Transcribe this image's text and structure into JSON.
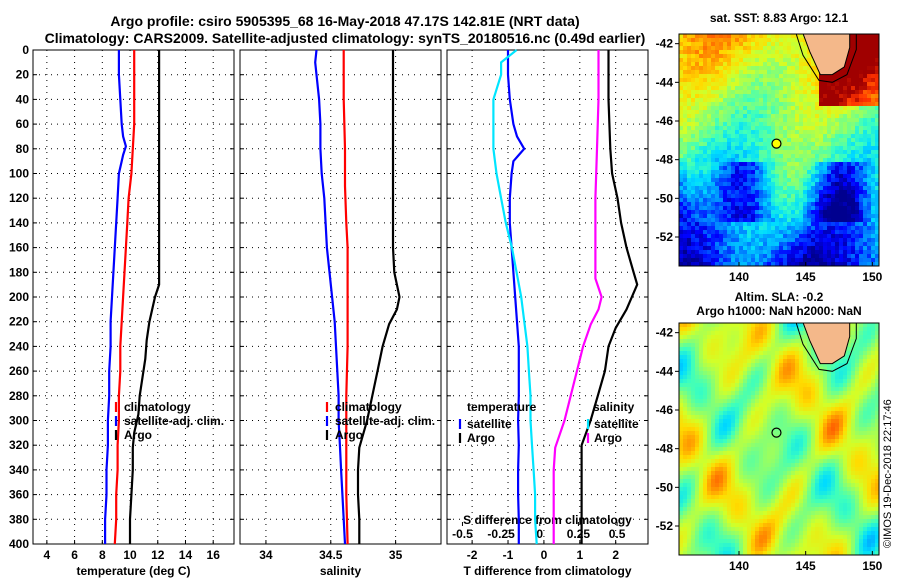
{
  "title_line1": "Argo profile: csiro 5905395_68 16-May-2018 47.17S 142.81E (NRT data)",
  "title_line2": "Climatology: CARS2009. Satellite-adjusted climatology: synTS_20180516.nc (0.49d earlier)",
  "credit": "©IMOS 19-Dec-2018 22:17:46",
  "colors": {
    "climatology": "#ff0000",
    "satellite": "#0000ff",
    "argo": "#000000",
    "t_diff": "#00e5ff",
    "s_diff": "#ff00ff",
    "grid": "#000000"
  },
  "depth_axis": {
    "ylim": [
      0,
      400
    ],
    "ticks": [
      "0",
      "20",
      "40",
      "60",
      "80",
      "100",
      "120",
      "140",
      "160",
      "180",
      "200",
      "220",
      "240",
      "260",
      "280",
      "300",
      "320",
      "340",
      "360",
      "380",
      "400"
    ]
  },
  "chart_data": [
    {
      "type": "line",
      "id": "temperature",
      "xlabel": "temperature (deg C)",
      "xlim": [
        3,
        17.5
      ],
      "xticks": [
        4,
        6,
        8,
        10,
        12,
        14,
        16
      ],
      "xtick_labels": [
        "4",
        "6",
        "8",
        "10",
        "12",
        "14",
        "16"
      ],
      "legend": [
        "climatology",
        "satellite-adj. clim.",
        "Argo"
      ],
      "series": [
        {
          "name": "climatology",
          "color": "#ff0000",
          "points": [
            [
              10.3,
              0
            ],
            [
              10.3,
              30
            ],
            [
              10.3,
              60
            ],
            [
              10.2,
              80
            ],
            [
              10.1,
              100
            ],
            [
              9.9,
              120
            ],
            [
              9.8,
              140
            ],
            [
              9.7,
              160
            ],
            [
              9.6,
              180
            ],
            [
              9.5,
              200
            ],
            [
              9.4,
              220
            ],
            [
              9.3,
              240
            ],
            [
              9.3,
              260
            ],
            [
              9.2,
              280
            ],
            [
              9.2,
              300
            ],
            [
              9.1,
              320
            ],
            [
              9.1,
              340
            ],
            [
              9.0,
              360
            ],
            [
              9.0,
              380
            ],
            [
              8.9,
              400
            ]
          ]
        },
        {
          "name": "satellite",
          "color": "#0000ff",
          "points": [
            [
              9.2,
              0
            ],
            [
              9.2,
              20
            ],
            [
              9.3,
              40
            ],
            [
              9.4,
              60
            ],
            [
              9.5,
              70
            ],
            [
              9.7,
              78
            ],
            [
              9.5,
              85
            ],
            [
              9.4,
              90
            ],
            [
              9.2,
              100
            ],
            [
              9.1,
              120
            ],
            [
              9.0,
              140
            ],
            [
              8.9,
              160
            ],
            [
              8.8,
              180
            ],
            [
              8.7,
              200
            ],
            [
              8.6,
              220
            ],
            [
              8.6,
              240
            ],
            [
              8.5,
              260
            ],
            [
              8.5,
              280
            ],
            [
              8.4,
              300
            ],
            [
              8.4,
              320
            ],
            [
              8.3,
              340
            ],
            [
              8.3,
              360
            ],
            [
              8.2,
              380
            ],
            [
              8.2,
              400
            ]
          ]
        },
        {
          "name": "Argo",
          "color": "#000000",
          "points": [
            [
              12.1,
              0
            ],
            [
              12.1,
              40
            ],
            [
              12.1,
              80
            ],
            [
              12.1,
              120
            ],
            [
              12.1,
              160
            ],
            [
              12.1,
              190
            ],
            [
              11.8,
              200
            ],
            [
              11.6,
              210
            ],
            [
              11.4,
              220
            ],
            [
              11.2,
              235
            ],
            [
              11.1,
              250
            ],
            [
              10.9,
              265
            ],
            [
              10.7,
              280
            ],
            [
              10.6,
              295
            ],
            [
              10.3,
              310
            ],
            [
              10.2,
              322
            ],
            [
              10.2,
              340
            ],
            [
              10.1,
              360
            ],
            [
              10.0,
              380
            ],
            [
              10.0,
              400
            ]
          ]
        }
      ]
    },
    {
      "type": "line",
      "id": "salinity",
      "xlabel": "salinity",
      "xlim": [
        33.8,
        35.35
      ],
      "xticks": [
        34,
        34.5,
        35
      ],
      "xtick_labels": [
        "34",
        "34.5",
        "35"
      ],
      "legend": [
        "climatology",
        "satellite-adj. clim.",
        "Argo"
      ],
      "series": [
        {
          "name": "climatology",
          "color": "#ff0000",
          "points": [
            [
              34.6,
              0
            ],
            [
              34.6,
              40
            ],
            [
              34.61,
              80
            ],
            [
              34.61,
              110
            ],
            [
              34.62,
              140
            ],
            [
              34.63,
              160
            ],
            [
              34.63,
              200
            ],
            [
              34.63,
              240
            ],
            [
              34.62,
              280
            ],
            [
              34.62,
              320
            ],
            [
              34.62,
              360
            ],
            [
              34.63,
              400
            ]
          ]
        },
        {
          "name": "satellite",
          "color": "#0000ff",
          "points": [
            [
              34.39,
              0
            ],
            [
              34.38,
              10
            ],
            [
              34.39,
              20
            ],
            [
              34.41,
              40
            ],
            [
              34.42,
              60
            ],
            [
              34.42,
              80
            ],
            [
              34.43,
              100
            ],
            [
              34.45,
              120
            ],
            [
              34.46,
              140
            ],
            [
              34.47,
              160
            ],
            [
              34.49,
              180
            ],
            [
              34.51,
              200
            ],
            [
              34.53,
              220
            ],
            [
              34.54,
              240
            ],
            [
              34.55,
              260
            ],
            [
              34.56,
              280
            ],
            [
              34.56,
              300
            ],
            [
              34.57,
              320
            ],
            [
              34.58,
              340
            ],
            [
              34.59,
              360
            ],
            [
              34.6,
              380
            ],
            [
              34.61,
              400
            ]
          ]
        },
        {
          "name": "Argo",
          "color": "#000000",
          "points": [
            [
              34.98,
              0
            ],
            [
              34.98,
              40
            ],
            [
              34.98,
              80
            ],
            [
              34.98,
              120
            ],
            [
              34.98,
              160
            ],
            [
              34.99,
              180
            ],
            [
              35.03,
              200
            ],
            [
              35.01,
              210
            ],
            [
              34.95,
              222
            ],
            [
              34.9,
              240
            ],
            [
              34.86,
              260
            ],
            [
              34.82,
              280
            ],
            [
              34.78,
              300
            ],
            [
              34.72,
              322
            ],
            [
              34.71,
              340
            ],
            [
              34.71,
              360
            ],
            [
              34.72,
              380
            ],
            [
              34.72,
              400
            ]
          ]
        }
      ]
    },
    {
      "type": "line",
      "id": "difference",
      "xlabel": "T difference from climatology",
      "xlim": [
        -2.7,
        2.9
      ],
      "xticks": [
        -2,
        -1,
        0,
        1,
        2
      ],
      "xtick_labels": [
        "-2",
        "-1",
        "0",
        "1",
        "2"
      ],
      "x2label": "S difference from climatology",
      "x2ticks": [
        -0.5,
        -0.25,
        0,
        0.25,
        0.5
      ],
      "x2tick_labels": [
        "-0.5",
        "-0.25",
        "0",
        "0.25",
        "0.5"
      ],
      "legend_left_title": "temperature",
      "legend_right_title": "salinity",
      "legend_left": [
        "satellite",
        "Argo"
      ],
      "legend_right": [
        "satellite",
        "Argo"
      ],
      "series": [
        {
          "name": "T satellite",
          "color": "#0000ff",
          "points": [
            [
              -1.0,
              0
            ],
            [
              -1.0,
              20
            ],
            [
              -0.95,
              40
            ],
            [
              -0.85,
              60
            ],
            [
              -0.75,
              70
            ],
            [
              -0.55,
              80
            ],
            [
              -0.7,
              85
            ],
            [
              -0.85,
              90
            ],
            [
              -0.9,
              100
            ],
            [
              -0.95,
              120
            ],
            [
              -0.95,
              140
            ],
            [
              -0.9,
              160
            ],
            [
              -0.85,
              180
            ],
            [
              -0.8,
              200
            ],
            [
              -0.75,
              220
            ],
            [
              -0.7,
              240
            ],
            [
              -0.7,
              260
            ],
            [
              -0.7,
              280
            ],
            [
              -0.72,
              300
            ],
            [
              -0.7,
              320
            ],
            [
              -0.72,
              340
            ],
            [
              -0.72,
              360
            ],
            [
              -0.7,
              380
            ],
            [
              -0.7,
              400
            ]
          ]
        },
        {
          "name": "T Argo",
          "color": "#000000",
          "points": [
            [
              1.8,
              0
            ],
            [
              1.8,
              40
            ],
            [
              1.85,
              80
            ],
            [
              1.9,
              100
            ],
            [
              2.05,
              120
            ],
            [
              2.15,
              140
            ],
            [
              2.3,
              160
            ],
            [
              2.5,
              180
            ],
            [
              2.6,
              190
            ],
            [
              2.3,
              210
            ],
            [
              2.0,
              225
            ],
            [
              1.8,
              240
            ],
            [
              1.7,
              260
            ],
            [
              1.5,
              280
            ],
            [
              1.3,
              300
            ],
            [
              1.05,
              320
            ],
            [
              1.05,
              340
            ],
            [
              1.05,
              360
            ],
            [
              1.05,
              380
            ],
            [
              1.05,
              400
            ]
          ]
        },
        {
          "name": "S satellite",
          "color": "#00e5ff",
          "points": [
            [
              -0.15,
              0
            ],
            [
              -0.25,
              10
            ],
            [
              -0.25,
              20
            ],
            [
              -0.3,
              40
            ],
            [
              -0.3,
              80
            ],
            [
              -0.28,
              100
            ],
            [
              -0.25,
              120
            ],
            [
              -0.22,
              140
            ],
            [
              -0.18,
              160
            ],
            [
              -0.15,
              180
            ],
            [
              -0.12,
              200
            ],
            [
              -0.1,
              220
            ],
            [
              -0.08,
              240
            ],
            [
              -0.07,
              260
            ],
            [
              -0.06,
              280
            ],
            [
              -0.06,
              300
            ],
            [
              -0.05,
              320
            ],
            [
              -0.04,
              340
            ],
            [
              -0.03,
              360
            ],
            [
              -0.03,
              380
            ],
            [
              -0.02,
              400
            ]
          ]
        },
        {
          "name": "S Argo",
          "color": "#ff00ff",
          "points": [
            [
              0.38,
              0
            ],
            [
              0.38,
              40
            ],
            [
              0.37,
              80
            ],
            [
              0.36,
              120
            ],
            [
              0.36,
              160
            ],
            [
              0.36,
              185
            ],
            [
              0.4,
              200
            ],
            [
              0.38,
              210
            ],
            [
              0.33,
              222
            ],
            [
              0.28,
              240
            ],
            [
              0.24,
              260
            ],
            [
              0.2,
              280
            ],
            [
              0.16,
              300
            ],
            [
              0.1,
              322
            ],
            [
              0.09,
              340
            ],
            [
              0.09,
              360
            ],
            [
              0.09,
              380
            ],
            [
              0.09,
              400
            ]
          ]
        }
      ]
    }
  ],
  "maps": [
    {
      "id": "sst",
      "title": "sat. SST: 8.83 Argo: 12.1",
      "title_line2": "",
      "lon_ticks": [
        "140",
        "145",
        "150"
      ],
      "lat_ticks": [
        "-42",
        "-44",
        "-46",
        "-48",
        "-50",
        "-52"
      ],
      "lon_range": [
        135.5,
        150.5
      ],
      "lat_range": [
        -53.5,
        -41.5
      ]
    },
    {
      "id": "sla",
      "title": "Altim. SLA: -0.2",
      "title_line2": "Argo h1000: NaN h2000: NaN",
      "lon_ticks": [
        "140",
        "145",
        "150"
      ],
      "lat_ticks": [
        "-42",
        "-44",
        "-46",
        "-48",
        "-50",
        "-52"
      ],
      "lon_range": [
        135.5,
        150.5
      ],
      "lat_range": [
        -53.5,
        -41.5
      ]
    }
  ],
  "argo_position": {
    "lon": 142.81,
    "lat": -47.17
  }
}
